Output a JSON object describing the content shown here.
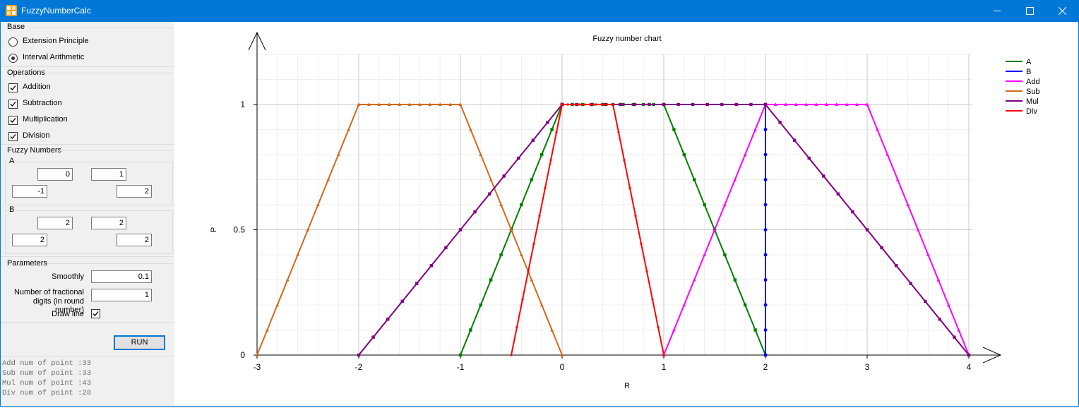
{
  "window": {
    "title": "FuzzyNumberCalc",
    "controls": {
      "minimize": "minimize-icon",
      "maximize": "maximize-icon",
      "close": "close-icon"
    },
    "accent": "#0078d7"
  },
  "base": {
    "label": "Base",
    "options": [
      {
        "label": "Extension Principle",
        "checked": false
      },
      {
        "label": "Interval Arithmetic",
        "checked": true
      }
    ]
  },
  "operations": {
    "label": "Operations",
    "items": [
      {
        "label": "Addition",
        "checked": true
      },
      {
        "label": "Subtraction",
        "checked": true
      },
      {
        "label": "Multiplication",
        "checked": true
      },
      {
        "label": "Division",
        "checked": true
      }
    ]
  },
  "fuzzy_numbers": {
    "label": "Fuzzy Numbers",
    "A": {
      "label": "A",
      "top_left": "0",
      "top_right": "1",
      "bottom_left": "-1",
      "bottom_right": "2"
    },
    "B": {
      "label": "B",
      "top_left": "2",
      "top_right": "2",
      "bottom_left": "2",
      "bottom_right": "2"
    }
  },
  "parameters": {
    "label": "Parameters",
    "smoothly_label": "Smoothly",
    "smoothly_value": "0.1",
    "digits_label_1": "Number of fractional",
    "digits_label_2": "digits (in round number)",
    "digits_value": "1",
    "draw_line_label": "Draw line",
    "draw_line_checked": true
  },
  "run_label": "RUN",
  "log": [
    "Add num of point :33",
    "Sub num of point :33",
    "Mul num of point :43",
    "Div num of point :28"
  ],
  "chart_data": {
    "type": "line",
    "title": "Fuzzy number chart",
    "xlabel": "R",
    "ylabel": "P",
    "xlim": [
      -3,
      4
    ],
    "ylim": [
      0,
      1
    ],
    "x_ticks": [
      -3,
      -2,
      -1,
      0,
      1,
      2,
      3,
      4
    ],
    "y_ticks": [
      0,
      0.5,
      1
    ],
    "y_tick_labels": [
      "0",
      "0.5",
      "1"
    ],
    "grid": true,
    "legend_position": "top-right",
    "series": [
      {
        "name": "A",
        "color": "#008000",
        "marker": "square",
        "points": [
          [
            -1,
            0
          ],
          [
            0,
            1
          ],
          [
            1,
            1
          ],
          [
            2,
            0
          ]
        ],
        "steps": [
          10,
          10,
          10
        ]
      },
      {
        "name": "B",
        "color": "#0000ff",
        "marker": "circle",
        "points": [
          [
            2,
            0
          ],
          [
            2,
            1
          ]
        ],
        "steps": [
          10
        ]
      },
      {
        "name": "Add",
        "color": "#ff00ff",
        "marker": "triangle",
        "points": [
          [
            1,
            0
          ],
          [
            2,
            1
          ],
          [
            3,
            1
          ],
          [
            4,
            0
          ]
        ],
        "steps": [
          10,
          10,
          10
        ]
      },
      {
        "name": "Sub",
        "color": "#d2691e",
        "marker": "triangle",
        "points": [
          [
            -3,
            0
          ],
          [
            -2,
            1
          ],
          [
            -1,
            1
          ],
          [
            0,
            0
          ]
        ],
        "steps": [
          10,
          10,
          10
        ]
      },
      {
        "name": "Mul",
        "color": "#800080",
        "marker": "square",
        "points": [
          [
            -2,
            0
          ],
          [
            0,
            1
          ],
          [
            2,
            1
          ],
          [
            4,
            0
          ]
        ],
        "steps": [
          14,
          14,
          14
        ]
      },
      {
        "name": "Div",
        "color": "#ff0000",
        "marker": "dot",
        "points": [
          [
            -0.5,
            0
          ],
          [
            0,
            1
          ],
          [
            0.5,
            1
          ],
          [
            1,
            0
          ]
        ],
        "steps": [
          9,
          9,
          9
        ]
      }
    ]
  }
}
